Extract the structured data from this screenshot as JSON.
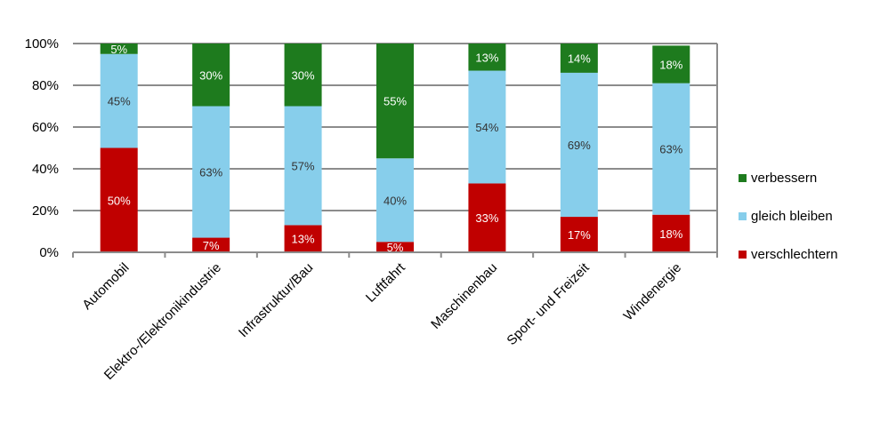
{
  "chart_data": {
    "type": "bar",
    "stacked": true,
    "categories": [
      "Automobil",
      "Elektro-/Elektronikindustrie",
      "Infrastruktur/Bau",
      "Luftfahrt",
      "Maschinenbau",
      "Sport- und Freizeit",
      "Windenergie"
    ],
    "series": [
      {
        "name": "verschlechtern",
        "values": [
          50,
          7,
          13,
          5,
          33,
          17,
          18
        ],
        "color": "#c00000",
        "label_color": "#ffffff"
      },
      {
        "name": "gleich bleiben",
        "values": [
          45,
          63,
          57,
          40,
          54,
          69,
          63
        ],
        "color": "#87ceeb",
        "label_color": "#333333"
      },
      {
        "name": "verbessern",
        "values": [
          5,
          30,
          30,
          55,
          13,
          14,
          18
        ],
        "color": "#1e7b1e",
        "label_color": "#ffffff"
      }
    ],
    "yticks": [
      "0%",
      "20%",
      "40%",
      "60%",
      "80%",
      "100%"
    ],
    "ylim": [
      0,
      100
    ],
    "grid": true,
    "legend_position": "right",
    "legend_order": [
      "verbessern",
      "gleich bleiben",
      "verschlechtern"
    ],
    "xlabel": "",
    "ylabel": ""
  }
}
